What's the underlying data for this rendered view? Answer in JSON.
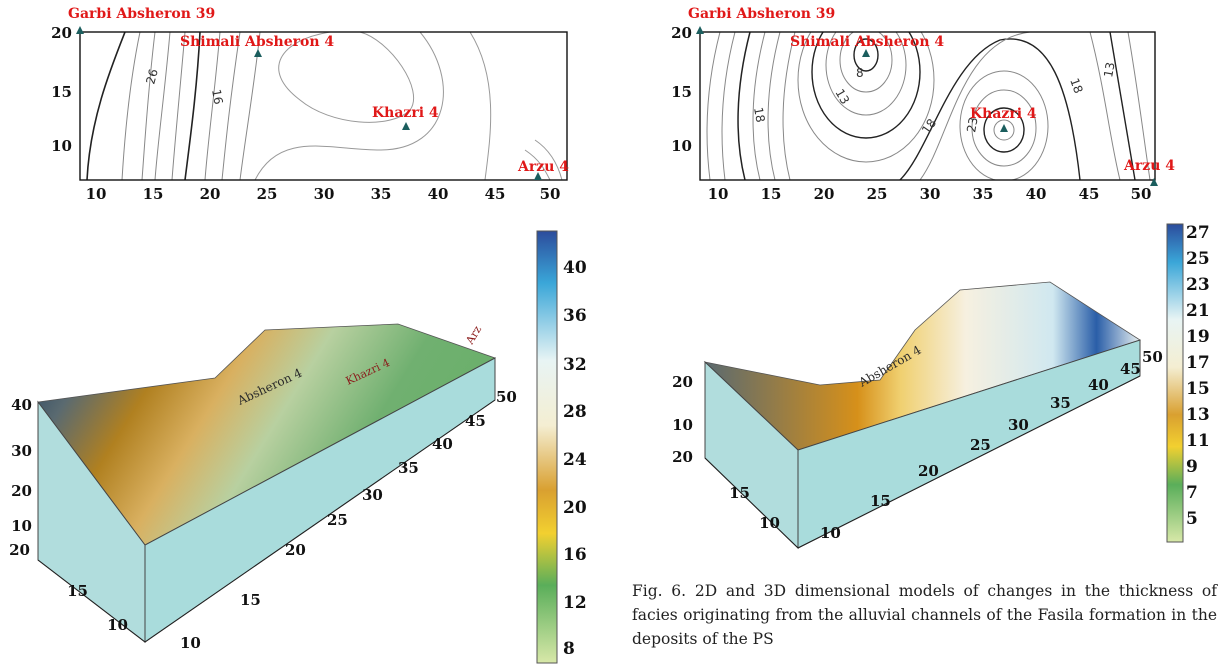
{
  "maps": [
    {
      "id": "left",
      "x_ticks": [
        "10",
        "15",
        "20",
        "25",
        "30",
        "35",
        "40",
        "45",
        "50"
      ],
      "y_ticks": [
        "20",
        "15",
        "10"
      ],
      "contour_labels": [
        "26",
        "16"
      ],
      "wells": [
        {
          "name": "Garbi Absheron 39"
        },
        {
          "name": "Shimali Absheron 4"
        },
        {
          "name": "Khazri 4"
        },
        {
          "name": "Arzu 4"
        }
      ]
    },
    {
      "id": "right",
      "x_ticks": [
        "10",
        "15",
        "20",
        "25",
        "30",
        "35",
        "40",
        "45",
        "50"
      ],
      "y_ticks": [
        "20",
        "15",
        "10"
      ],
      "contour_labels": [
        "8",
        "13",
        "18",
        "18",
        "23",
        "18",
        "13"
      ],
      "wells": [
        {
          "name": "Garbi Absheron 39"
        },
        {
          "name": "Shimali Absheron 4"
        },
        {
          "name": "Khazri 4"
        },
        {
          "name": "Arzu 4"
        }
      ]
    }
  ],
  "surfaces": [
    {
      "id": "left3d",
      "z_ticks": [
        "40",
        "30",
        "20",
        "10"
      ],
      "y_ticks": [
        "20",
        "15",
        "10"
      ],
      "x_ticks": [
        "50",
        "45",
        "40",
        "35",
        "30",
        "25",
        "20",
        "15",
        "10"
      ],
      "surface_labels": [
        "Absheron 4",
        "Khazri 4",
        "Arz"
      ],
      "colorbar_ticks": [
        "40",
        "36",
        "32",
        "28",
        "24",
        "20",
        "16",
        "12",
        "8"
      ]
    },
    {
      "id": "right3d",
      "z_ticks": [
        "20",
        "10",
        "20"
      ],
      "y_ticks": [
        "15",
        "10"
      ],
      "x_ticks": [
        "50",
        "45",
        "40",
        "35",
        "30",
        "25",
        "20",
        "15",
        "10"
      ],
      "surface_labels": [
        "Absheron 4"
      ],
      "colorbar_ticks": [
        "27",
        "25",
        "23",
        "21",
        "19",
        "17",
        "15",
        "13",
        "11",
        "9",
        "7",
        "5"
      ]
    }
  ],
  "caption": "Fig. 6. 2D and 3D dimensional models of changes in the thickness of facies originating from the alluvial channels of the Fasila formation in the deposits of the PS"
}
